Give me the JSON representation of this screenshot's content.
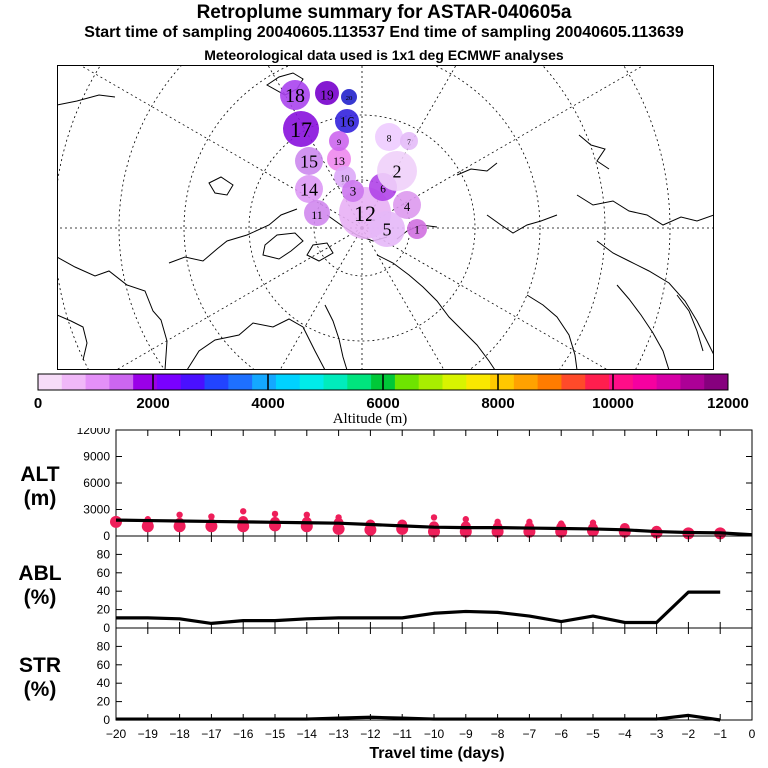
{
  "header": {
    "title": "Retroplume summary for ASTAR-040605a",
    "subtitle": "Start time of sampling 20040605.113537      End time of sampling 20040605.113639",
    "subtitle2": "Meteorological data used is 1x1 deg ECMWF analyses"
  },
  "map": {
    "clusters": [
      {
        "label": "18",
        "color": "#aa44ee"
      },
      {
        "label": "19",
        "color": "#7700cc"
      },
      {
        "label": "20",
        "color": "#2222cc"
      },
      {
        "label": "17",
        "color": "#8811dd"
      },
      {
        "label": "16",
        "color": "#3322dd"
      },
      {
        "label": "15",
        "color": "#cc88ee"
      },
      {
        "label": "14",
        "color": "#dd99f5"
      },
      {
        "label": "13",
        "color": "#ee88ee"
      },
      {
        "label": "12",
        "color": "#e8b0f5"
      },
      {
        "label": "11",
        "color": "#d088ee"
      },
      {
        "label": "10",
        "color": "#ddaaf8"
      },
      {
        "label": "9",
        "color": "#cc66ee"
      },
      {
        "label": "8",
        "color": "#eeccff"
      },
      {
        "label": "7",
        "color": "#e4bbf8"
      },
      {
        "label": "6",
        "color": "#b044e8"
      },
      {
        "label": "5",
        "color": "#e6b8f8"
      },
      {
        "label": "4",
        "color": "#dd99ee"
      },
      {
        "label": "3",
        "color": "#cc77ee"
      },
      {
        "label": "2",
        "color": "#f0d0fa"
      },
      {
        "label": "1",
        "color": "#d070e0"
      }
    ]
  },
  "colorbar": {
    "label": "Altitude (m)",
    "tick_labels": [
      "0",
      "2000",
      "4000",
      "6000",
      "8000",
      "10000",
      "12000"
    ],
    "colors": [
      "#f6dcf8",
      "#f0b8f8",
      "#e490f8",
      "#cc66f0",
      "#9a00e8",
      "#7a00ff",
      "#4a10ff",
      "#2244ff",
      "#1e70ff",
      "#14a8ff",
      "#00d2ff",
      "#00ecea",
      "#00ecbc",
      "#00e47e",
      "#00c838",
      "#6ee400",
      "#a8ee00",
      "#d8f400",
      "#fae800",
      "#ffc800",
      "#ffa200",
      "#ff7c00",
      "#ff4a2a",
      "#ff1e4e",
      "#ff0e88",
      "#f600a0",
      "#d600a6",
      "#ac0096",
      "#86007e"
    ]
  },
  "chart_data": [
    {
      "type": "line",
      "panel": "ALT",
      "ylabel_line1": "ALT",
      "ylabel_line2": "(m)",
      "ylim": [
        0,
        12000
      ],
      "yticks": [
        0,
        3000,
        6000,
        9000,
        12000
      ],
      "ytick_labels": [
        "0",
        "3000",
        "6000",
        "9000",
        "12000"
      ],
      "x": [
        -20,
        -19,
        -18,
        -17,
        -16,
        -15,
        -14,
        -13,
        -12,
        -11,
        -10,
        -9,
        -8,
        -7,
        -6,
        -5,
        -4,
        -3,
        -2,
        -1,
        0
      ],
      "series": [
        {
          "name": "mean altitude",
          "values": [
            1800,
            1750,
            1700,
            1650,
            1600,
            1550,
            1500,
            1450,
            1300,
            1150,
            1000,
            950,
            950,
            900,
            850,
            800,
            700,
            500,
            400,
            350,
            150
          ]
        }
      ],
      "points": [
        {
          "x": -20,
          "values": [
            1600
          ]
        },
        {
          "x": -19,
          "values": [
            1100,
            1500,
            1900
          ]
        },
        {
          "x": -18,
          "values": [
            1100,
            1500,
            2400
          ]
        },
        {
          "x": -17,
          "values": [
            1100,
            1400,
            2200
          ]
        },
        {
          "x": -16,
          "values": [
            1100,
            1700,
            2800
          ]
        },
        {
          "x": -15,
          "values": [
            1200,
            1600,
            2500
          ]
        },
        {
          "x": -14,
          "values": [
            1100,
            1600,
            2400
          ]
        },
        {
          "x": -13,
          "values": [
            800,
            1500,
            2100
          ]
        },
        {
          "x": -12,
          "values": [
            700,
            1300
          ]
        },
        {
          "x": -11,
          "values": [
            800,
            1300
          ]
        },
        {
          "x": -10,
          "values": [
            500,
            1100,
            2100
          ]
        },
        {
          "x": -9,
          "values": [
            500,
            1100,
            1900
          ]
        },
        {
          "x": -8,
          "values": [
            500,
            1000,
            1600
          ]
        },
        {
          "x": -7,
          "values": [
            500,
            1000,
            1600
          ]
        },
        {
          "x": -6,
          "values": [
            500,
            1000,
            1400
          ]
        },
        {
          "x": -5,
          "values": [
            600,
            900,
            1500
          ]
        },
        {
          "x": -4,
          "values": [
            500,
            900
          ]
        },
        {
          "x": -3,
          "values": [
            400,
            600
          ]
        },
        {
          "x": -2,
          "values": [
            300
          ]
        },
        {
          "x": -1,
          "values": [
            300
          ]
        }
      ]
    },
    {
      "type": "line",
      "panel": "ABL",
      "ylabel_line1": "ABL",
      "ylabel_line2": "(%)",
      "ylim": [
        0,
        100
      ],
      "yticks": [
        0,
        20,
        40,
        60,
        80
      ],
      "ytick_labels": [
        "0",
        "20",
        "40",
        "60",
        "80"
      ],
      "x": [
        -20,
        -19,
        -18,
        -17,
        -16,
        -15,
        -14,
        -13,
        -12,
        -11,
        -10,
        -9,
        -8,
        -7,
        -6,
        -5,
        -4,
        -3,
        -2,
        -1
      ],
      "series": [
        {
          "name": "ABL fraction",
          "values": [
            11,
            11,
            10,
            5,
            8,
            8,
            10,
            11,
            11,
            11,
            16,
            18,
            17,
            13,
            7,
            13,
            6,
            6,
            39,
            39
          ]
        }
      ]
    },
    {
      "type": "line",
      "panel": "STR",
      "ylabel_line1": "STR",
      "ylabel_line2": "(%)",
      "ylim": [
        0,
        100
      ],
      "yticks": [
        0,
        20,
        40,
        60,
        80
      ],
      "ytick_labels": [
        "0",
        "20",
        "40",
        "60",
        "80"
      ],
      "x": [
        -20,
        -19,
        -18,
        -17,
        -16,
        -15,
        -14,
        -13,
        -12,
        -11,
        -10,
        -9,
        -8,
        -7,
        -6,
        -5,
        -4,
        -3,
        -2,
        -1
      ],
      "series": [
        {
          "name": "STR fraction",
          "values": [
            1,
            1,
            1,
            1,
            1,
            1,
            1,
            2,
            3,
            2,
            1,
            1,
            1,
            1,
            1,
            1,
            1,
            1,
            5,
            0
          ]
        }
      ],
      "xlabel": "Travel time (days)",
      "xticks": [
        -20,
        -19,
        -18,
        -17,
        -16,
        -15,
        -14,
        -13,
        -12,
        -11,
        -10,
        -9,
        -8,
        -7,
        -6,
        -5,
        -4,
        -3,
        -2,
        -1,
        0
      ],
      "xtick_labels": [
        "−20",
        "−19",
        "−18",
        "−17",
        "−16",
        "−15",
        "−14",
        "−13",
        "−12",
        "−11",
        "−10",
        "−9",
        "−8",
        "−7",
        "−6",
        "−5",
        "−4",
        "−3",
        "−2",
        "−1",
        "0"
      ]
    }
  ]
}
